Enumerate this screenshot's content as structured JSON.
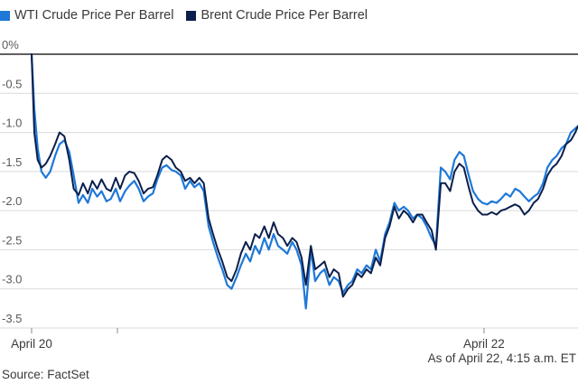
{
  "legend": [
    {
      "label": "WTI Crude Price Per Barrel",
      "color": "#1f78d8"
    },
    {
      "label": "Brent Crude Price Per Barrel",
      "color": "#0b1f4b"
    }
  ],
  "note": "As of April 22, 4:15 a.m. ET",
  "source": "Source: FactSet",
  "chart_data": {
    "type": "line",
    "title": "",
    "xlabel": "",
    "ylabel": "",
    "ylim": [
      -3.5,
      0
    ],
    "xlim": [
      0,
      100
    ],
    "y_ticks": [
      0,
      -0.5,
      -1.0,
      -1.5,
      -2.0,
      -2.5,
      -3.0,
      -3.5
    ],
    "y_tick_labels": [
      "0%",
      "-0.5",
      "-1.0",
      "-1.5",
      "-2.0",
      "-2.5",
      "-3.0",
      "-3.5"
    ],
    "x_ticks": [
      {
        "x": 0,
        "label": "April 20"
      },
      {
        "x": 15.7,
        "label": ""
      },
      {
        "x": 82.8,
        "label": "April 22"
      }
    ],
    "series": [
      {
        "name": "WTI Crude Price Per Barrel",
        "color": "#1f78d8",
        "x": [
          0,
          0.5,
          1.1,
          1.8,
          2.6,
          3.4,
          4.3,
          5.1,
          6.0,
          6.9,
          7.7,
          8.6,
          9.4,
          10.3,
          11.1,
          12.0,
          12.8,
          13.7,
          14.5,
          15.4,
          16.2,
          17.1,
          17.9,
          18.8,
          19.6,
          20.5,
          21.3,
          22.2,
          23.0,
          23.9,
          24.7,
          25.6,
          26.4,
          27.3,
          28.1,
          29.0,
          29.8,
          30.7,
          31.5,
          32.4,
          33.2,
          34.1,
          34.9,
          35.8,
          36.6,
          37.5,
          38.3,
          39.2,
          40.0,
          40.9,
          41.7,
          42.6,
          43.4,
          44.3,
          45.1,
          46.0,
          46.8,
          47.7,
          48.5,
          49.4,
          50.2,
          51.1,
          51.9,
          52.8,
          53.6,
          54.5,
          55.3,
          56.2,
          57.0,
          57.9,
          58.7,
          59.6,
          60.4,
          61.3,
          62.1,
          63.0,
          63.8,
          64.7,
          65.5,
          66.4,
          67.2,
          68.1,
          68.9,
          69.8,
          70.6,
          71.5,
          72.3,
          73.2,
          74.0,
          74.9,
          75.7,
          76.6,
          77.4,
          78.3,
          79.1,
          80.0,
          80.8,
          81.7,
          82.5,
          83.4,
          84.2,
          85.1,
          85.9,
          86.8,
          87.6,
          88.5,
          89.3,
          90.2,
          91.0,
          91.9,
          92.7,
          93.6,
          94.4,
          95.3,
          96.1,
          97.0,
          97.8,
          98.7,
          99.5,
          100
        ],
        "values": [
          0,
          -0.7,
          -1.2,
          -1.5,
          -1.58,
          -1.5,
          -1.3,
          -1.15,
          -1.1,
          -1.25,
          -1.55,
          -1.9,
          -1.8,
          -1.9,
          -1.72,
          -1.82,
          -1.75,
          -1.88,
          -1.85,
          -1.72,
          -1.88,
          -1.75,
          -1.68,
          -1.62,
          -1.72,
          -1.88,
          -1.82,
          -1.78,
          -1.6,
          -1.45,
          -1.42,
          -1.48,
          -1.5,
          -1.55,
          -1.72,
          -1.62,
          -1.7,
          -1.65,
          -1.75,
          -2.2,
          -2.4,
          -2.6,
          -2.75,
          -2.95,
          -3.0,
          -2.85,
          -2.7,
          -2.55,
          -2.65,
          -2.45,
          -2.55,
          -2.35,
          -2.5,
          -2.3,
          -2.45,
          -2.5,
          -2.55,
          -2.4,
          -2.5,
          -2.7,
          -3.25,
          -2.5,
          -2.9,
          -2.8,
          -2.75,
          -2.95,
          -2.85,
          -2.9,
          -3.05,
          -2.95,
          -2.9,
          -2.75,
          -2.8,
          -2.7,
          -2.75,
          -2.5,
          -2.65,
          -2.3,
          -2.15,
          -1.9,
          -2.0,
          -1.95,
          -2.0,
          -2.1,
          -2.05,
          -2.1,
          -2.2,
          -2.35,
          -2.45,
          -1.45,
          -1.5,
          -1.6,
          -1.35,
          -1.25,
          -1.3,
          -1.55,
          -1.75,
          -1.85,
          -1.9,
          -1.92,
          -1.88,
          -1.9,
          -1.85,
          -1.78,
          -1.82,
          -1.72,
          -1.75,
          -1.82,
          -1.88,
          -1.82,
          -1.78,
          -1.65,
          -1.45,
          -1.35,
          -1.3,
          -1.2,
          -1.15,
          -1.0,
          -0.95,
          -0.92
        ]
      },
      {
        "name": "Brent Crude Price Per Barrel",
        "color": "#0b1f4b",
        "x": [
          0,
          0.5,
          1.1,
          1.8,
          2.6,
          3.4,
          4.3,
          5.1,
          6.0,
          6.9,
          7.7,
          8.6,
          9.4,
          10.3,
          11.1,
          12.0,
          12.8,
          13.7,
          14.5,
          15.4,
          16.2,
          17.1,
          17.9,
          18.8,
          19.6,
          20.5,
          21.3,
          22.2,
          23.0,
          23.9,
          24.7,
          25.6,
          26.4,
          27.3,
          28.1,
          29.0,
          29.8,
          30.7,
          31.5,
          32.4,
          33.2,
          34.1,
          34.9,
          35.8,
          36.6,
          37.5,
          38.3,
          39.2,
          40.0,
          40.9,
          41.7,
          42.6,
          43.4,
          44.3,
          45.1,
          46.0,
          46.8,
          47.7,
          48.5,
          49.4,
          50.2,
          51.1,
          51.9,
          52.8,
          53.6,
          54.5,
          55.3,
          56.2,
          57.0,
          57.9,
          58.7,
          59.6,
          60.4,
          61.3,
          62.1,
          63.0,
          63.8,
          64.7,
          65.5,
          66.4,
          67.2,
          68.1,
          68.9,
          69.8,
          70.6,
          71.5,
          72.3,
          73.2,
          74.0,
          74.9,
          75.7,
          76.6,
          77.4,
          78.3,
          79.1,
          80.0,
          80.8,
          81.7,
          82.5,
          83.4,
          84.2,
          85.1,
          85.9,
          86.8,
          87.6,
          88.5,
          89.3,
          90.2,
          91.0,
          91.9,
          92.7,
          93.6,
          94.4,
          95.3,
          96.1,
          97.0,
          97.8,
          98.7,
          99.5,
          100
        ],
        "values": [
          0,
          -1.0,
          -1.35,
          -1.45,
          -1.4,
          -1.3,
          -1.15,
          -1.0,
          -1.05,
          -1.35,
          -1.72,
          -1.8,
          -1.65,
          -1.78,
          -1.62,
          -1.72,
          -1.6,
          -1.72,
          -1.75,
          -1.58,
          -1.72,
          -1.55,
          -1.5,
          -1.52,
          -1.62,
          -1.78,
          -1.72,
          -1.7,
          -1.55,
          -1.35,
          -1.3,
          -1.35,
          -1.45,
          -1.5,
          -1.62,
          -1.58,
          -1.65,
          -1.58,
          -1.65,
          -2.1,
          -2.3,
          -2.5,
          -2.65,
          -2.85,
          -2.9,
          -2.75,
          -2.55,
          -2.4,
          -2.5,
          -2.3,
          -2.35,
          -2.2,
          -2.35,
          -2.15,
          -2.3,
          -2.35,
          -2.45,
          -2.35,
          -2.4,
          -2.6,
          -2.95,
          -2.45,
          -2.75,
          -2.7,
          -2.65,
          -2.85,
          -2.75,
          -2.8,
          -3.1,
          -3.0,
          -2.95,
          -2.8,
          -2.85,
          -2.75,
          -2.8,
          -2.6,
          -2.7,
          -2.35,
          -2.2,
          -1.95,
          -2.1,
          -2.0,
          -2.05,
          -2.15,
          -2.05,
          -2.05,
          -2.15,
          -2.25,
          -2.5,
          -1.65,
          -1.65,
          -1.75,
          -1.5,
          -1.4,
          -1.45,
          -1.7,
          -1.9,
          -2.0,
          -2.05,
          -2.05,
          -2.02,
          -2.05,
          -2.0,
          -1.98,
          -1.95,
          -1.92,
          -1.95,
          -2.05,
          -2.0,
          -1.9,
          -1.85,
          -1.72,
          -1.55,
          -1.45,
          -1.4,
          -1.3,
          -1.15,
          -1.1,
          -1.0,
          -0.92
        ]
      }
    ]
  }
}
